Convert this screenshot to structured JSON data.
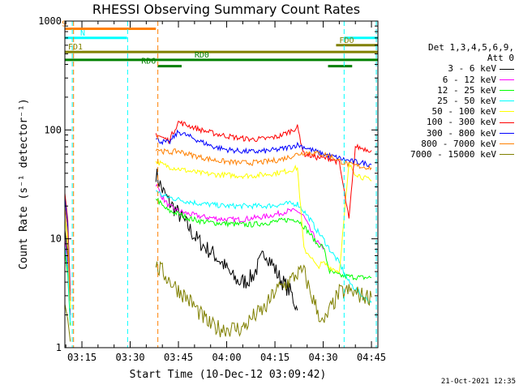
{
  "title": "RHESSI Observing Summary Count Rates",
  "chart_data": {
    "type": "line",
    "title": "RHESSI Observing Summary Count Rates",
    "xlabel": "Start Time (10-Dec-12 03:09:42)",
    "ylabel": "Count Rate (s⁻¹ detector⁻¹)",
    "x_ticks": [
      "03:15",
      "03:30",
      "03:45",
      "04:00",
      "04:15",
      "04:30",
      "04:45"
    ],
    "x_ticks_min": [
      15,
      30,
      45,
      60,
      75,
      90,
      105
    ],
    "xlim_min": [
      9.7,
      107
    ],
    "y_scale": "log",
    "ylim": [
      1,
      1000
    ],
    "y_ticks": [
      "1",
      "10",
      "100",
      "1000"
    ],
    "y_tick_values": [
      1,
      10,
      100,
      1000
    ],
    "legend_header": [
      "Det 1,3,4,5,6,9,",
      "Att 0"
    ],
    "legend_position": "right",
    "series": [
      {
        "name": "3 - 6 keV",
        "color": "#000000",
        "x": [
          38,
          40,
          42,
          45,
          48,
          50,
          53,
          56,
          59,
          62,
          64,
          66,
          68,
          70,
          72,
          74,
          76,
          78,
          80,
          82
        ],
        "y": [
          40,
          28,
          22,
          17,
          13,
          10.5,
          8.5,
          7.2,
          5.8,
          4.4,
          4.0,
          4.1,
          4.5,
          5.8,
          7.6,
          6.0,
          4.6,
          3.8,
          3.2,
          2.2
        ]
      },
      {
        "name": "6 - 12 keV",
        "color": "#ff00ff",
        "x": [
          38,
          40,
          42,
          45,
          48,
          52,
          56,
          60,
          64,
          68,
          72,
          76,
          79,
          82,
          84,
          86,
          88,
          90
        ],
        "y": [
          32,
          24,
          20,
          18,
          17,
          16,
          15.5,
          15,
          15,
          15.5,
          16,
          17,
          18,
          18,
          16,
          12,
          9.5,
          8
        ]
      },
      {
        "name": "12 - 25 keV",
        "color": "#00ff00",
        "x": [
          38,
          40,
          42,
          45,
          48,
          52,
          56,
          60,
          64,
          68,
          72,
          76,
          79,
          82,
          84,
          86,
          88,
          90,
          92,
          95,
          98,
          102,
          105
        ],
        "y": [
          24,
          20,
          18,
          17,
          15.5,
          14.5,
          14,
          13.8,
          13.5,
          13.5,
          14,
          14.5,
          15,
          15,
          13,
          11,
          9,
          8.5,
          5,
          4.6,
          4.5,
          4.4,
          4.4
        ]
      },
      {
        "name": "25 - 50 keV",
        "color": "#00ffff",
        "x": [
          38,
          40,
          42,
          45,
          48,
          52,
          56,
          60,
          64,
          68,
          72,
          76,
          79,
          82,
          84,
          86,
          88,
          90,
          92,
          95,
          98,
          102,
          105
        ],
        "y": [
          28,
          25,
          24,
          23,
          22,
          21,
          20.5,
          20,
          20,
          20,
          20,
          20.5,
          21,
          21,
          18,
          15,
          12,
          10,
          8,
          6,
          4,
          3,
          2.6
        ]
      },
      {
        "name": "50 - 100 keV",
        "color": "#ffff00",
        "x": [
          38,
          40,
          42,
          45,
          48,
          52,
          56,
          60,
          64,
          68,
          72,
          76,
          79,
          82,
          84,
          86,
          88,
          90,
          92,
          95,
          98,
          100,
          102,
          105
        ],
        "y": [
          52,
          48,
          46,
          44,
          42,
          40,
          39,
          38.5,
          38,
          38,
          39,
          40.5,
          42,
          45,
          8,
          7,
          5.5,
          6,
          5.5,
          5,
          48,
          40,
          37,
          34
        ]
      },
      {
        "name": "100 - 300 keV",
        "color": "#ff0000",
        "x": [
          38,
          40,
          42,
          45,
          48,
          52,
          56,
          60,
          64,
          68,
          72,
          76,
          79,
          82,
          84,
          86,
          88,
          90,
          92,
          95,
          98,
          100,
          102,
          105
        ],
        "y": [
          92,
          85,
          80,
          118,
          110,
          100,
          93,
          88,
          84,
          82,
          83,
          87,
          95,
          106,
          60,
          58,
          56,
          55,
          55,
          50,
          15,
          70,
          68,
          65
        ]
      },
      {
        "name": "300 - 800 keV",
        "color": "#0000ff",
        "x": [
          38,
          40,
          42,
          45,
          48,
          52,
          56,
          60,
          64,
          68,
          72,
          76,
          79,
          82,
          84,
          86,
          88,
          90,
          92,
          95,
          98,
          102,
          105
        ],
        "y": [
          82,
          78,
          76,
          96,
          88,
          78,
          70,
          66,
          64,
          63,
          64,
          66,
          69,
          73,
          70,
          66,
          63,
          60,
          58,
          55,
          52,
          50,
          48
        ]
      },
      {
        "name": "800 - 7000 keV",
        "color": "#ff8000",
        "x": [
          38,
          40,
          42,
          45,
          48,
          52,
          56,
          60,
          64,
          68,
          72,
          76,
          79,
          82,
          84,
          86,
          88,
          90,
          92,
          95,
          98,
          102,
          105
        ],
        "y": [
          68,
          64,
          62,
          64,
          60,
          56,
          53,
          51,
          50,
          50,
          51,
          53,
          56,
          60,
          62,
          62,
          61,
          60,
          58,
          52,
          48,
          46,
          45
        ]
      },
      {
        "name": "7000 - 15000 keV",
        "color": "#808000",
        "x": [
          38,
          40,
          42,
          45,
          48,
          50,
          52,
          55,
          58,
          62,
          65,
          68,
          72,
          75,
          78,
          80,
          82,
          84,
          86,
          88,
          90,
          92,
          95,
          98,
          102,
          105
        ],
        "y": [
          5.5,
          5,
          4.2,
          3.4,
          2.8,
          2.4,
          2,
          1.6,
          1.5,
          1.5,
          1.5,
          1.9,
          2.3,
          3.3,
          3.8,
          4.2,
          4.8,
          5.0,
          3.2,
          2.3,
          1.6,
          2.2,
          3.2,
          3.3,
          3,
          2.9
        ]
      }
    ],
    "status_bars": [
      {
        "label": "S",
        "color": "#ff8000",
        "level": 850,
        "segments": [
          [
            9.7,
            38
          ]
        ]
      },
      {
        "label": "N",
        "color": "#00ffff",
        "level": 700,
        "segments": [
          [
            9.7,
            29
          ]
        ]
      },
      {
        "label": "N",
        "color": "#00ffff",
        "level": 700,
        "segments": [
          [
            96.5,
            107
          ]
        ]
      },
      {
        "label": "FD1",
        "color": "#808000",
        "level": 520,
        "segments": [
          [
            9.7,
            107
          ]
        ]
      },
      {
        "label": "FDO",
        "color": "#808000",
        "level": 600,
        "segments": [
          [
            94,
            107
          ]
        ]
      },
      {
        "label": "RD0",
        "color": "#008000",
        "level": 440,
        "segments": [
          [
            9.7,
            107
          ]
        ]
      },
      {
        "label": "RD6",
        "color": "#008000",
        "level": 385,
        "segments": [
          [
            38.5,
            46
          ],
          [
            91.5,
            99
          ]
        ]
      }
    ],
    "vertical_markers": [
      {
        "color": "#00ffff",
        "x": [
          12,
          29.2,
          96.5,
          106.5
        ]
      },
      {
        "color": "#ff8000",
        "x": [
          12.4,
          38.6
        ]
      }
    ]
  },
  "footer": {
    "timestamp": "21-Oct-2021 12:35"
  }
}
